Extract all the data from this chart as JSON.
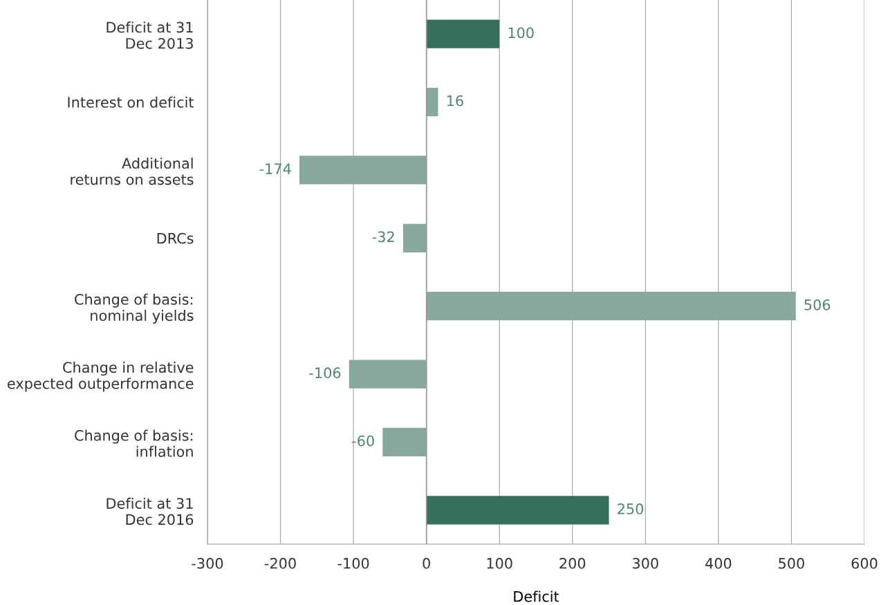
{
  "chart_data": {
    "type": "bar",
    "orientation": "horizontal",
    "xlabel": "Deficit",
    "categories": [
      "Deficit at 31\nDec 2013",
      "Interest on deficit",
      "Additional\nreturns on assets",
      "DRCs",
      "Change of basis:\nnominal yields",
      "Change in relative\nexpected outperformance",
      "Change of basis:\ninflation",
      "Deficit at 31\nDec 2016"
    ],
    "values": [
      100,
      16,
      -174,
      -32,
      506,
      -106,
      -60,
      250
    ],
    "colors": [
      "#376f5f",
      "#86a89e",
      "#86a89e",
      "#86a89e",
      "#86a89e",
      "#86a89e",
      "#86a89e",
      "#376f5f"
    ],
    "xlim": [
      -300,
      600
    ],
    "xticks": [
      -300,
      -200,
      -100,
      0,
      100,
      200,
      300,
      400,
      500,
      600
    ],
    "grid": "x",
    "data_labels": true
  }
}
